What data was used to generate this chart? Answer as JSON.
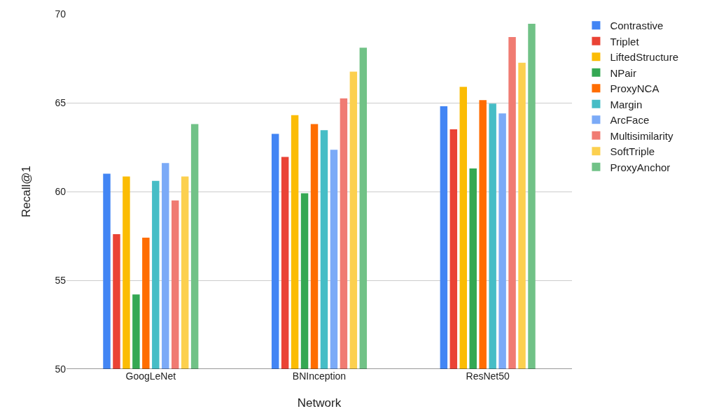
{
  "chart_data": {
    "type": "bar",
    "xlabel": "Network",
    "ylabel": "Recall@1",
    "categories": [
      "GoogLeNet",
      "BNInception",
      "ResNet50"
    ],
    "series": [
      {
        "name": "Contrastive",
        "color": "#4285f4",
        "values": [
          61.0,
          63.25,
          64.8
        ]
      },
      {
        "name": "Triplet",
        "color": "#ea4335",
        "values": [
          57.6,
          61.95,
          63.5
        ]
      },
      {
        "name": "LiftedStructure",
        "color": "#fbbc04",
        "values": [
          60.85,
          64.3,
          65.9
        ]
      },
      {
        "name": "NPair",
        "color": "#34a853",
        "values": [
          54.2,
          59.9,
          61.3
        ]
      },
      {
        "name": "ProxyNCA",
        "color": "#ff6d01",
        "values": [
          57.4,
          63.8,
          65.15
        ]
      },
      {
        "name": "Margin",
        "color": "#46bdc6",
        "values": [
          60.6,
          63.45,
          64.95
        ]
      },
      {
        "name": "ArcFace",
        "color": "#7baaf7",
        "values": [
          61.6,
          62.35,
          64.4
        ]
      },
      {
        "name": "Multisimilarity",
        "color": "#f07b72",
        "values": [
          59.5,
          65.25,
          68.7
        ]
      },
      {
        "name": "SoftTriple",
        "color": "#fcd04f",
        "values": [
          60.85,
          66.75,
          67.25
        ]
      },
      {
        "name": "ProxyAnchor",
        "color": "#71c287",
        "values": [
          63.8,
          68.1,
          69.45
        ]
      }
    ],
    "ylim": [
      50,
      70
    ],
    "yticks": [
      50,
      55,
      60,
      65,
      70
    ],
    "grid": "y",
    "legend": "top right"
  }
}
